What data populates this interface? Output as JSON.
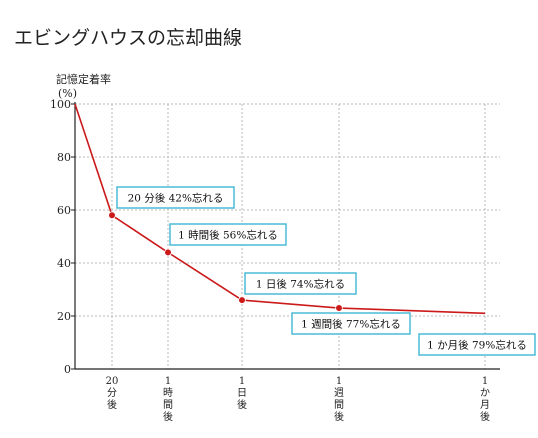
{
  "colors": {
    "line": "#cc1a1a",
    "point": "#cc1a1a",
    "annotation_border": "#3fb6d6",
    "axis": "#222222",
    "grid": "#b8b8b8"
  },
  "chart_data": {
    "type": "line",
    "title": "エビングハウスの忘却曲線",
    "ylabel_lines": [
      "記憶定着率",
      "(%)"
    ],
    "xlabel": "",
    "ylim": [
      0,
      100
    ],
    "yticks": [
      "0",
      "20",
      "40",
      "60",
      "80",
      "100"
    ],
    "grid": true,
    "x_ticks": [
      {
        "lines": [
          "20",
          "分",
          "後"
        ]
      },
      {
        "lines": [
          "1",
          "時",
          "間",
          "後"
        ]
      },
      {
        "lines": [
          "1",
          "日",
          "後"
        ]
      },
      {
        "lines": [
          "1",
          "週",
          "間",
          "後"
        ]
      },
      {
        "lines": [
          "1",
          "か",
          "月",
          "後"
        ]
      }
    ],
    "series": [
      {
        "points": [
          {
            "x": "0",
            "y": 100,
            "marker": false
          },
          {
            "x": "20分後",
            "y": 58,
            "marker": true
          },
          {
            "x": "1時間後",
            "y": 44,
            "marker": true
          },
          {
            "x": "1日後",
            "y": 26,
            "marker": true
          },
          {
            "x": "1週間後",
            "y": 23,
            "marker": true
          },
          {
            "x": "1か月後",
            "y": 21,
            "marker": false
          }
        ]
      }
    ],
    "annotations": [
      {
        "text": "20 分後 42%忘れる"
      },
      {
        "text": "1 時間後 56%忘れる"
      },
      {
        "text": "1 日後 74%忘れる"
      },
      {
        "text": "1 週間後 77%忘れる"
      },
      {
        "text": "1 か月後 79%忘れる"
      }
    ]
  }
}
